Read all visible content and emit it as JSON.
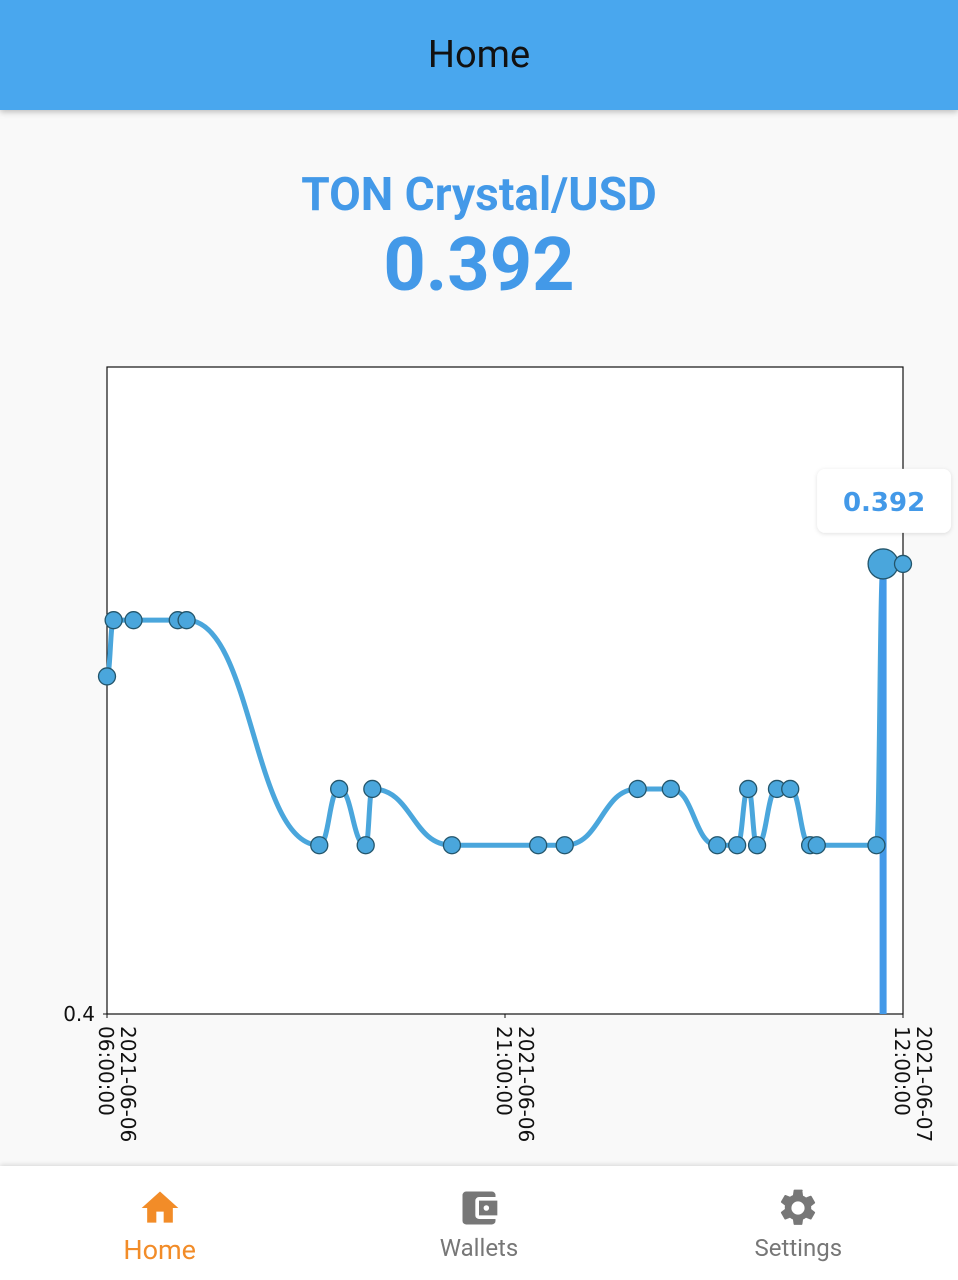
{
  "app_bar": {
    "title": "Home"
  },
  "ticker": {
    "pair": "TON Crystal/USD",
    "price": "0.392"
  },
  "chart_data": {
    "type": "line",
    "color": "#4aa6dc",
    "x": [
      "2021-06-06 06:00:00",
      "2021-06-06 06:15:00",
      "2021-06-06 07:00:00",
      "2021-06-06 08:40:00",
      "2021-06-06 09:00:00",
      "2021-06-06 14:00:00",
      "2021-06-06 14:45:00",
      "2021-06-06 15:45:00",
      "2021-06-06 16:00:00",
      "2021-06-06 19:00:00",
      "2021-06-06 22:15:00",
      "2021-06-06 23:15:00",
      "2021-06-07 02:00:00",
      "2021-06-07 03:15:00",
      "2021-06-07 05:00:00",
      "2021-06-07 05:45:00",
      "2021-06-07 06:10:00",
      "2021-06-07 06:30:00",
      "2021-06-07 07:15:00",
      "2021-06-07 07:45:00",
      "2021-06-07 08:30:00",
      "2021-06-07 08:45:00",
      "2021-06-07 11:00:00",
      "2021-06-07 11:15:00",
      "2021-06-07 12:00:00"
    ],
    "values": [
      0.394,
      0.393,
      0.393,
      0.393,
      0.393,
      0.397,
      0.396,
      0.397,
      0.396,
      0.397,
      0.397,
      0.397,
      0.396,
      0.396,
      0.397,
      0.397,
      0.396,
      0.397,
      0.396,
      0.396,
      0.397,
      0.397,
      0.397,
      0.392,
      0.392
    ],
    "xlim": [
      "2021-06-06 06:00:00",
      "2021-06-07 12:00:00"
    ],
    "xticks": [
      "2021-06-06 06:00:00",
      "2021-06-06 21:00:00",
      "2021-06-07 12:00:00"
    ],
    "ylim": [
      0.4,
      0.3885
    ],
    "yticks": [
      0.4
    ],
    "grid": false,
    "tooltip_index": 23
  },
  "nav": {
    "items": [
      "Home",
      "Wallets",
      "Settings"
    ],
    "active": 0
  }
}
